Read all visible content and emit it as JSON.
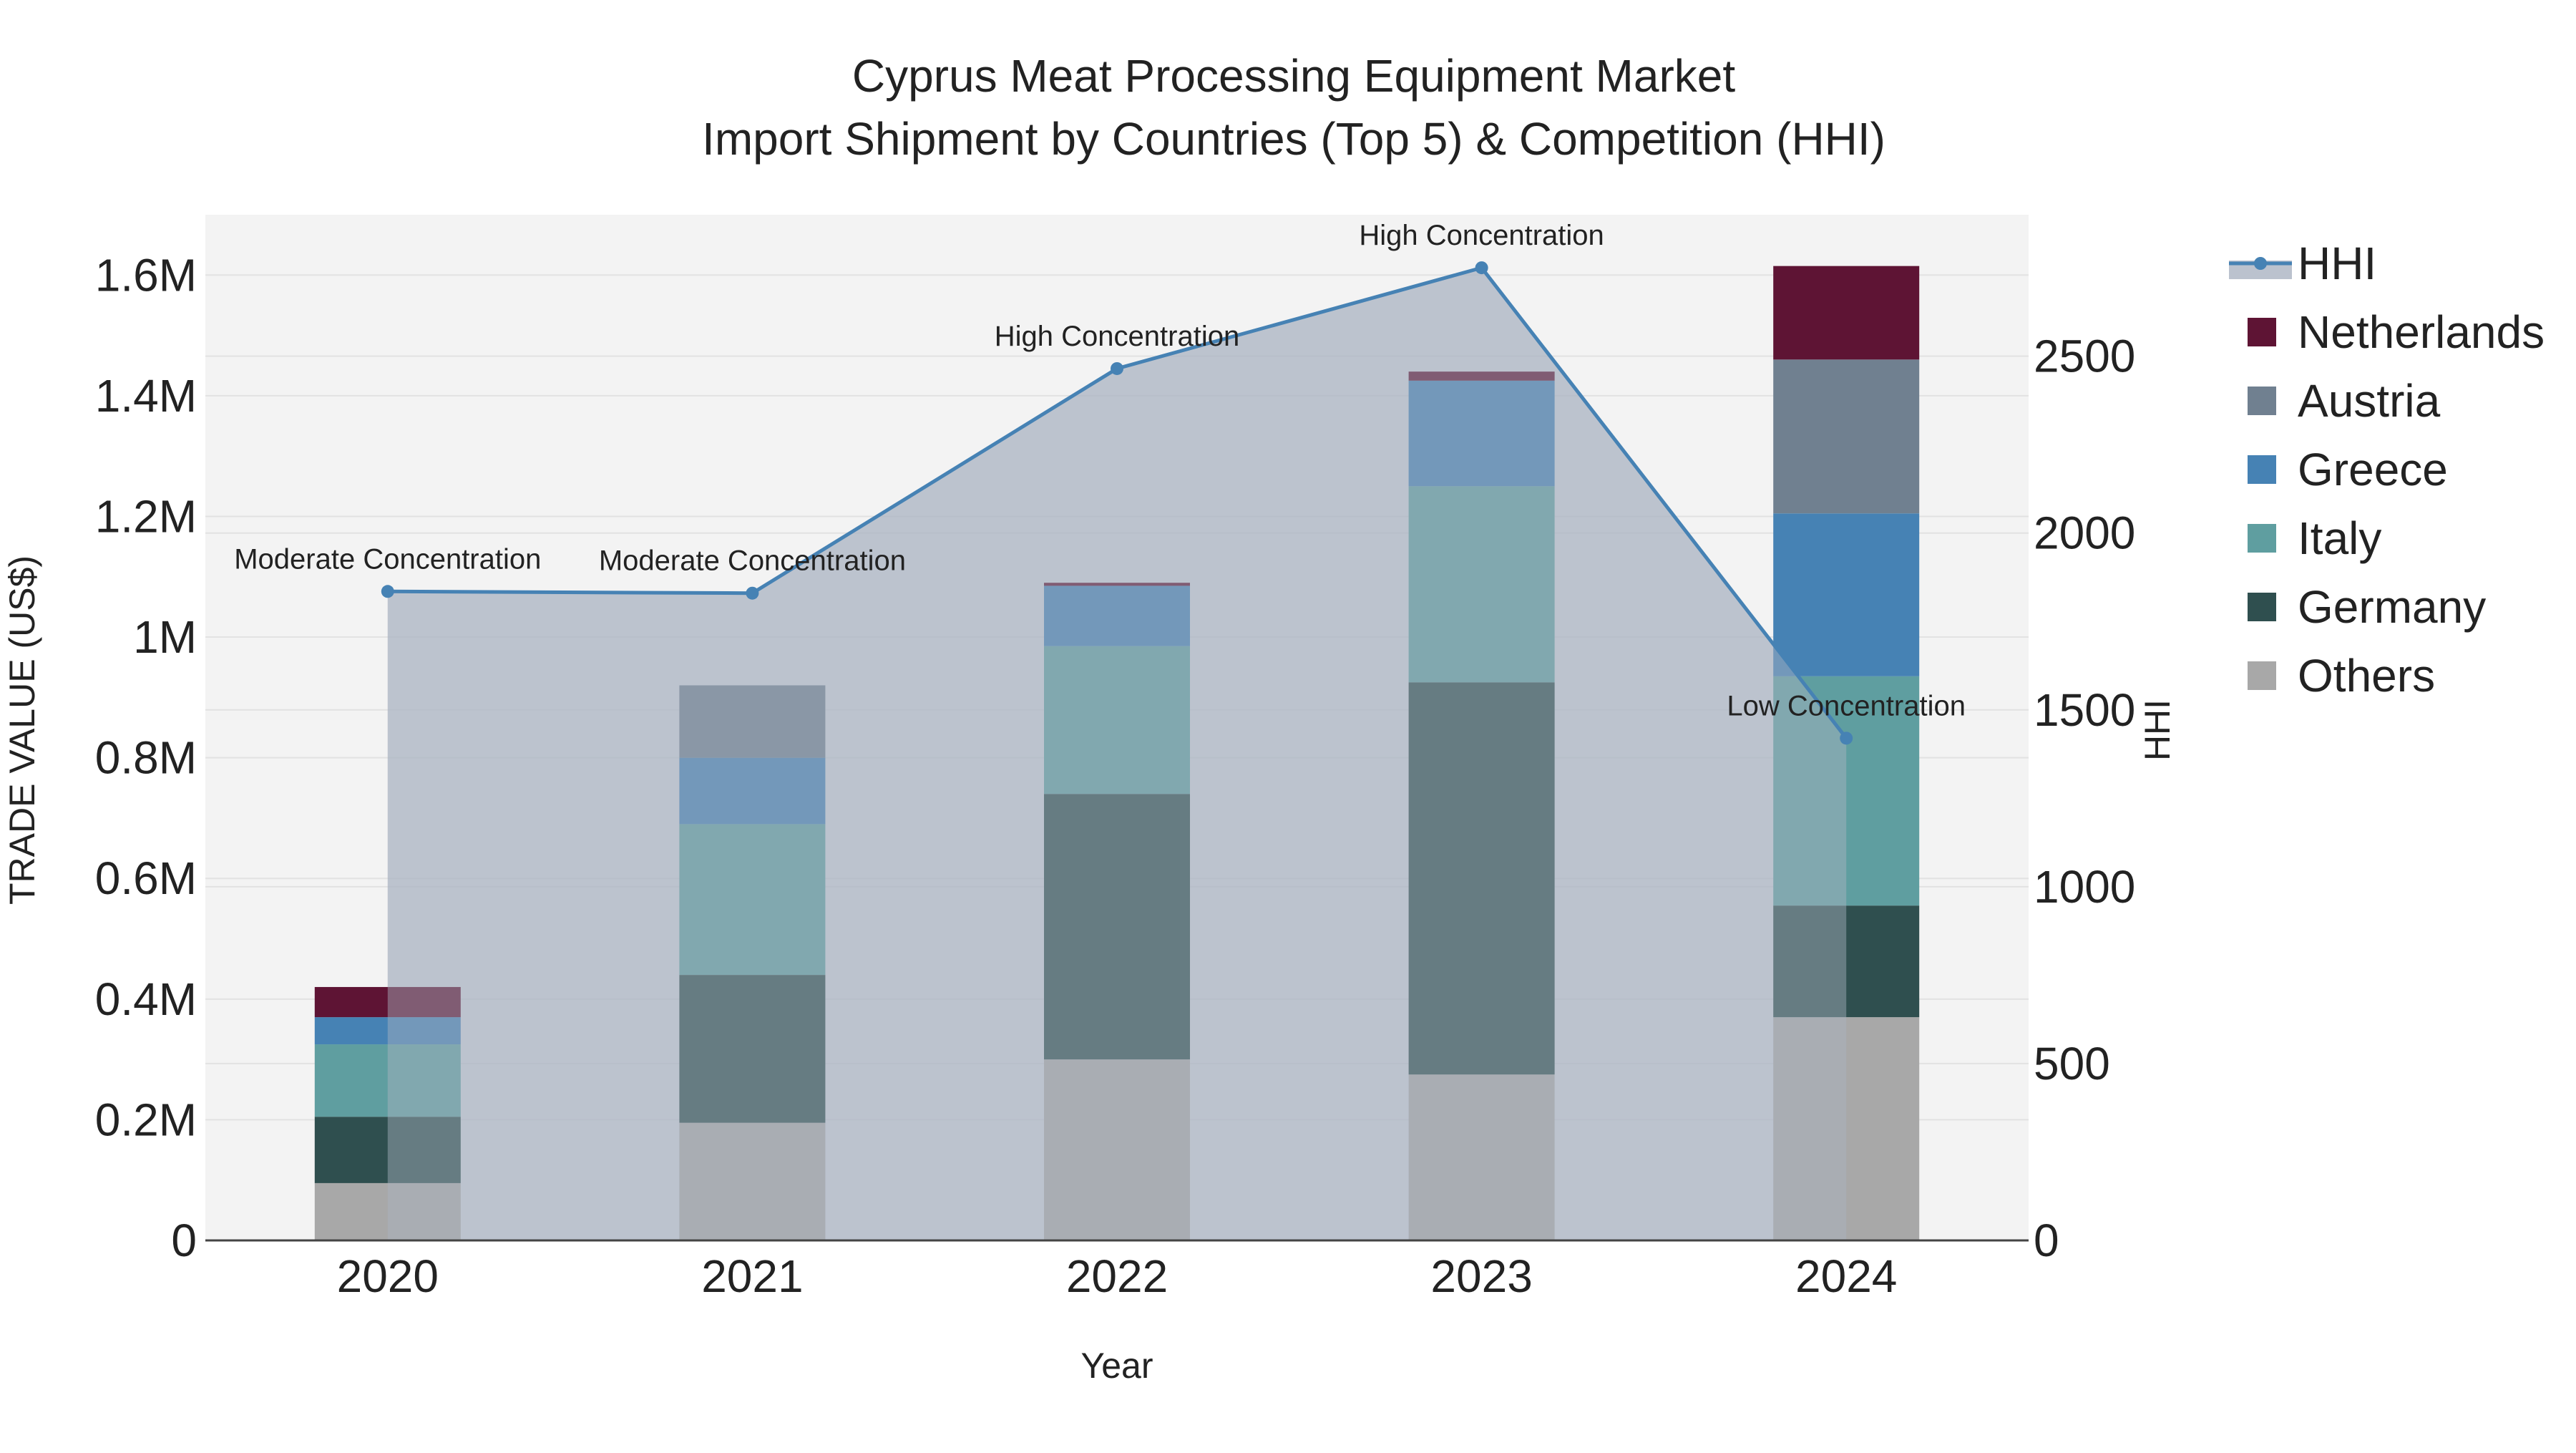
{
  "chart_data": {
    "type": "bar",
    "stacked": true,
    "title_line1": "Cyprus Meat Processing Equipment Market",
    "title_line2": "Import Shipment by Countries (Top 5) & Competition (HHI)",
    "xlabel": "Year",
    "ylabel": "TRADE VALUE (US$)",
    "y2label": "HHI",
    "categories": [
      "2020",
      "2021",
      "2022",
      "2023",
      "2024"
    ],
    "ylim": [
      0,
      1700000
    ],
    "y_ticks": [
      0,
      200000,
      400000,
      600000,
      800000,
      1000000,
      1200000,
      1400000,
      1600000
    ],
    "y_tick_labels": [
      "0",
      "0.2M",
      "0.4M",
      "0.6M",
      "0.8M",
      "1M",
      "1.2M",
      "1.4M",
      "1.6M"
    ],
    "y2lim": [
      0,
      2900
    ],
    "y2_ticks": [
      0,
      500,
      1000,
      1500,
      2000,
      2500
    ],
    "y2_tick_labels": [
      "0",
      "500",
      "1000",
      "1500",
      "2000",
      "2500"
    ],
    "series": [
      {
        "name": "Others",
        "color": "#a8a8a8",
        "values": [
          95000,
          195000,
          300000,
          275000,
          370000
        ]
      },
      {
        "name": "Germany",
        "color": "#2f4f4f",
        "values": [
          110000,
          245000,
          440000,
          650000,
          185000
        ]
      },
      {
        "name": "Italy",
        "color": "#5f9ea0",
        "values": [
          120000,
          250000,
          245000,
          325000,
          380000
        ]
      },
      {
        "name": "Greece",
        "color": "#4682b4",
        "values": [
          45000,
          110000,
          100000,
          175000,
          270000
        ]
      },
      {
        "name": "Austria",
        "color": "#708090",
        "values": [
          0,
          120000,
          0,
          0,
          255000
        ]
      },
      {
        "name": "Netherlands",
        "color": "#5e1434",
        "values": [
          50000,
          0,
          5000,
          15000,
          155000
        ]
      }
    ],
    "hhi": {
      "name": "HHI",
      "color": "#4682b4",
      "area_color": "#aab3c2",
      "values": [
        1835,
        1830,
        2465,
        2750,
        1420
      ],
      "annotations": [
        "Moderate Concentration",
        "Moderate Concentration",
        "High Concentration",
        "High Concentration",
        "Low Concentration"
      ]
    },
    "legend": [
      "HHI",
      "Netherlands",
      "Austria",
      "Greece",
      "Italy",
      "Germany",
      "Others"
    ],
    "legend_position": "right"
  }
}
